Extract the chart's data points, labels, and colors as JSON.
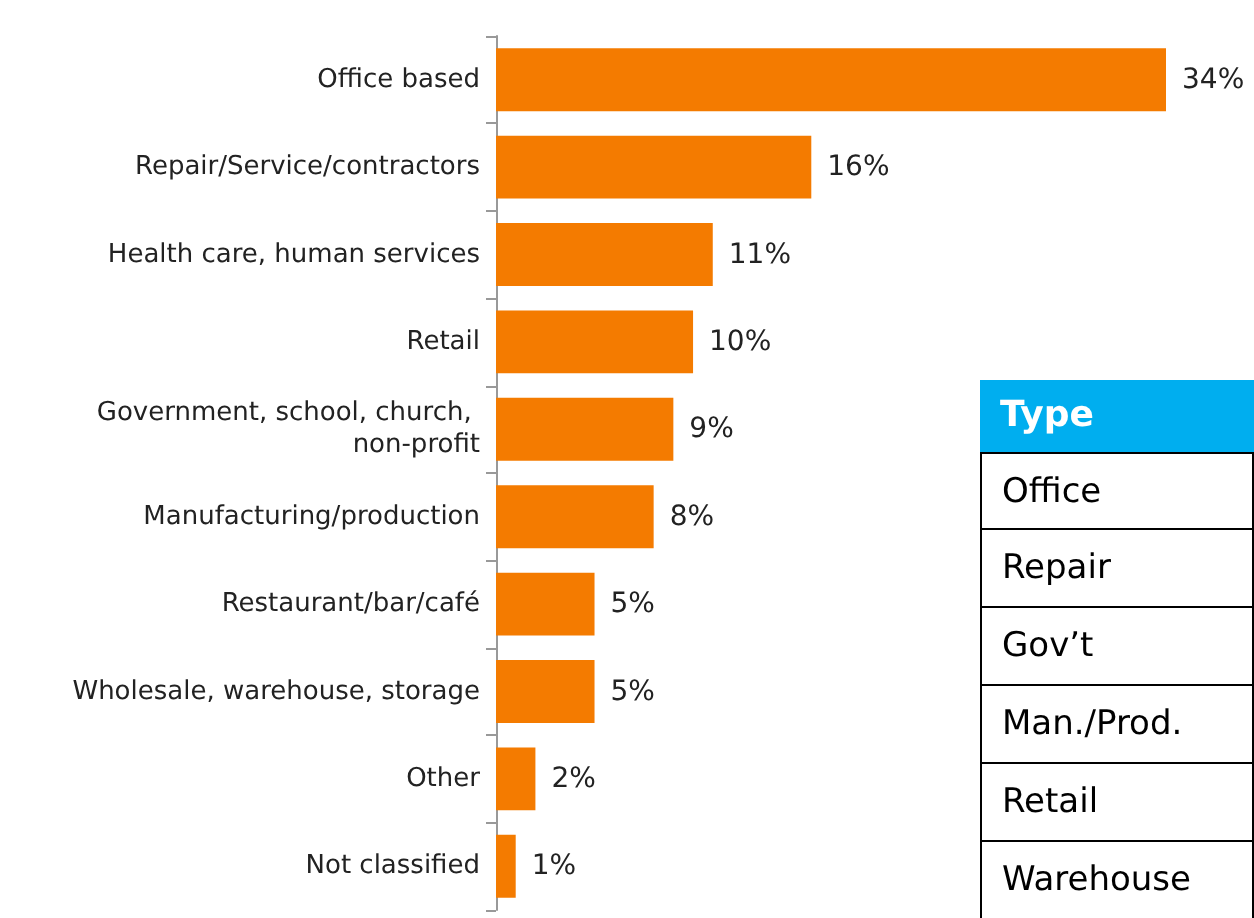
{
  "chart_data": [
    {
      "type": "bar",
      "orientation": "horizontal",
      "categories": [
        "Office based",
        "Repair/Service/contractors",
        "Health care, human services",
        "Retail",
        "Government, school, church, non-profit",
        "Manufacturing/production",
        "Restaurant/bar/café",
        "Wholesale, warehouse, storage",
        "Other",
        "Not classified"
      ],
      "values": [
        34,
        16,
        11,
        10,
        9,
        8,
        5,
        5,
        2,
        1
      ],
      "value_labels": [
        "34%",
        "16%",
        "11%",
        "10%",
        "9%",
        "8%",
        "5%",
        "5%",
        "2%",
        "1%"
      ],
      "color": "#f47b00"
    },
    {
      "type": "other",
      "title": "Type",
      "annotations": [
        "Office",
        "Repair",
        "Gov’t",
        "Man./Prod.",
        "Retail",
        "Warehouse"
      ]
    }
  ]
}
